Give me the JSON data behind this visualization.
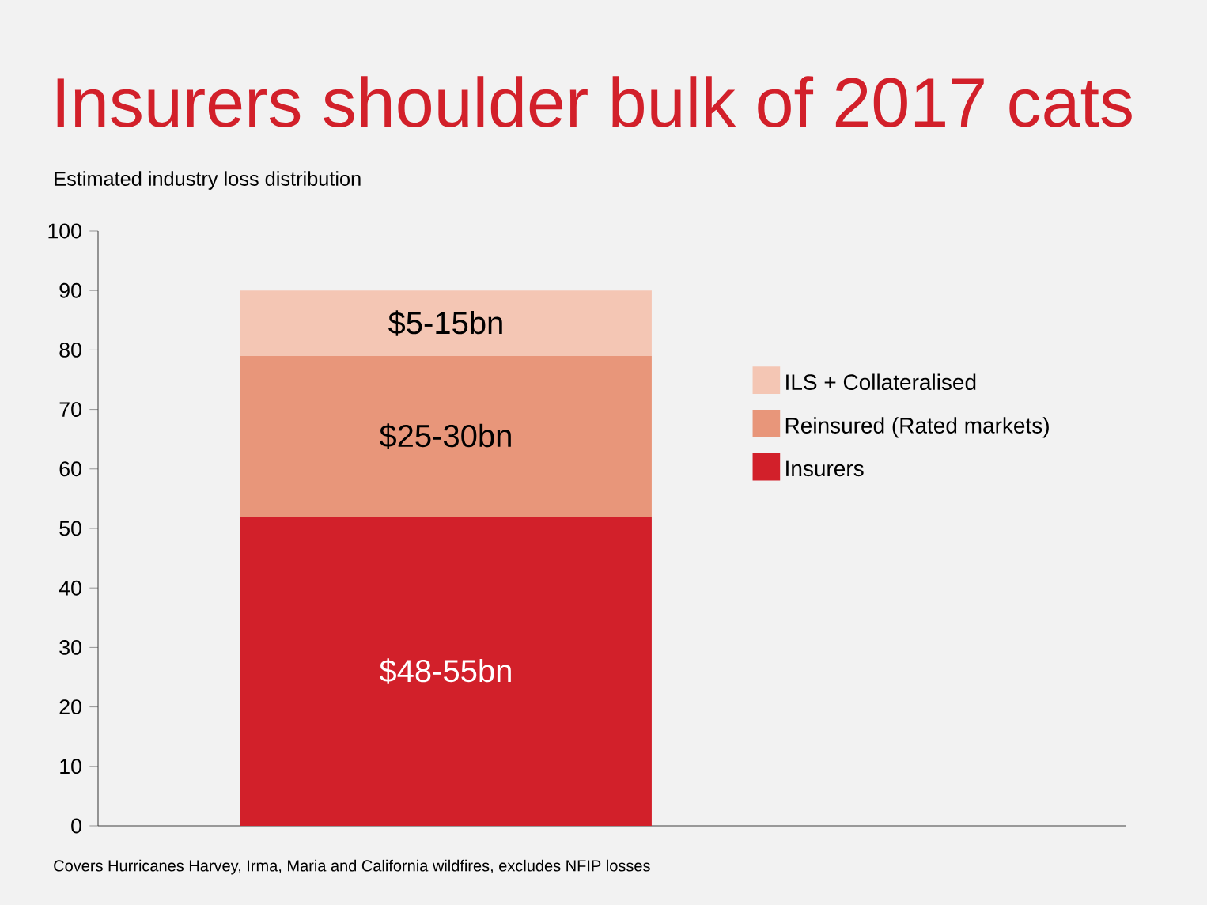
{
  "chart_data": {
    "type": "bar",
    "stacked": true,
    "title": "Insurers shoulder bulk of 2017 cats",
    "subtitle": "Estimated industry loss distribution",
    "categories": [
      null
    ],
    "ylim": [
      0,
      100
    ],
    "yticks": [
      0,
      10,
      20,
      30,
      40,
      50,
      60,
      70,
      80,
      90,
      100
    ],
    "legend": "right",
    "annotations": [
      "Covers Hurricanes Harvey, Irma, Maria and California wildfires, excludes NFIP losses"
    ],
    "series": [
      {
        "name": "Insurers",
        "color": "#d2202a",
        "values": [
          52
        ],
        "value_labels": [
          "$48-55bn"
        ]
      },
      {
        "name": "Reinsured (Rated markets)",
        "color": "#e8967a",
        "values": [
          27
        ],
        "value_labels": [
          "$25-30bn"
        ]
      },
      {
        "name": "ILS + Collateralised",
        "color": "#f4c6b4",
        "values": [
          11
        ],
        "value_labels": [
          "$5-15bn"
        ]
      }
    ]
  }
}
